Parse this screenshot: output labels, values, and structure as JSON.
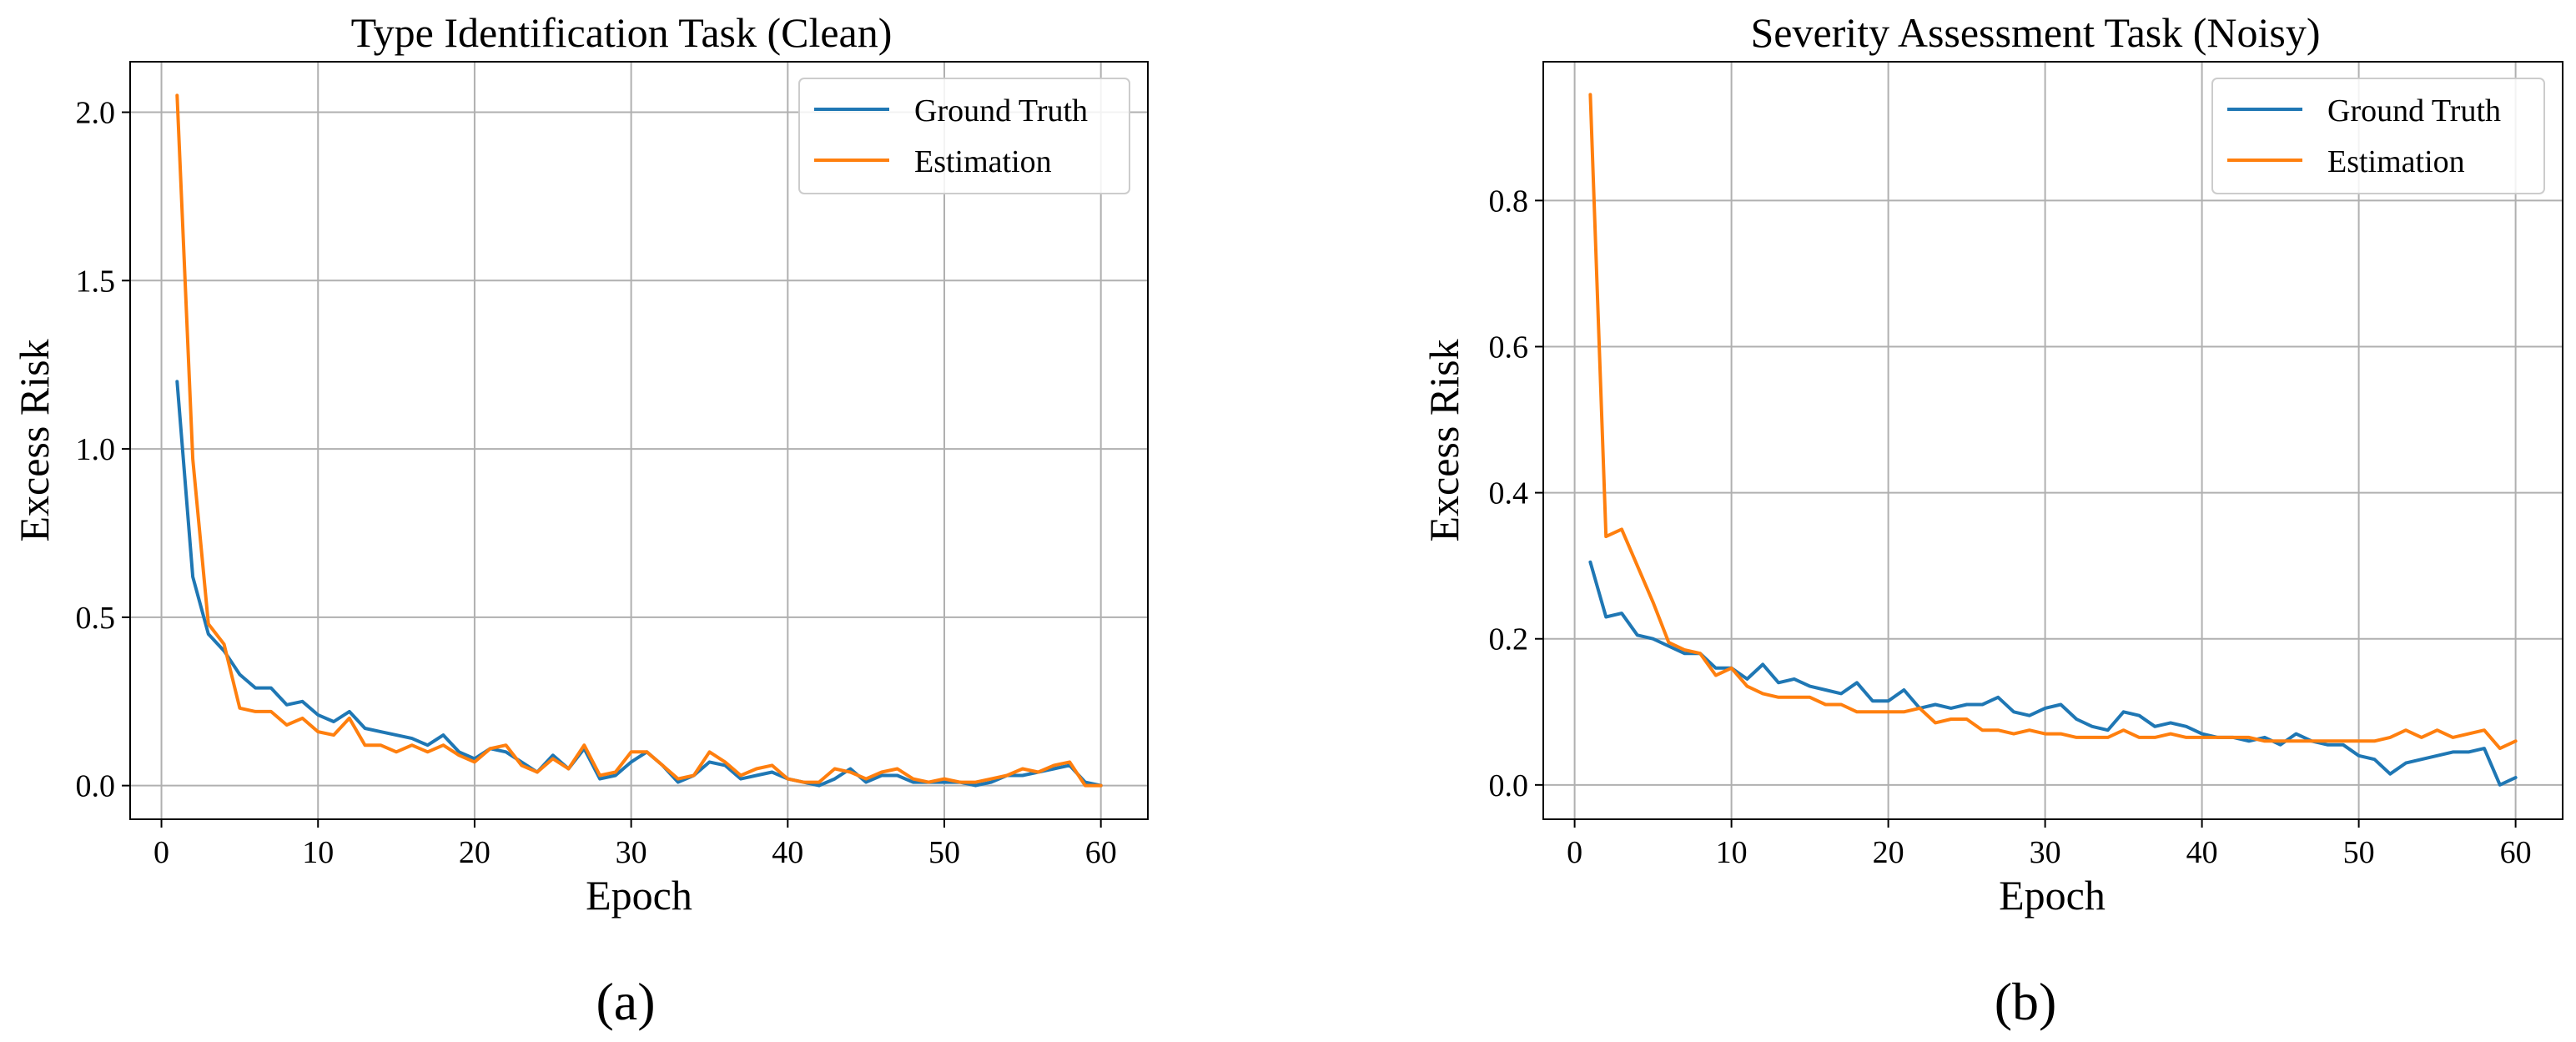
{
  "chart_data": [
    {
      "type": "line",
      "title": "Type Identification Task (Clean)",
      "xlabel": "Epoch",
      "ylabel": "Excess Risk",
      "caption": "(a)",
      "xlim": [
        -2,
        63
      ],
      "ylim": [
        -0.1,
        2.15
      ],
      "xticks": [
        0,
        10,
        20,
        30,
        40,
        50,
        60
      ],
      "xtick_labels": [
        "0",
        "10",
        "20",
        "30",
        "40",
        "50",
        "60"
      ],
      "yticks": [
        0.0,
        0.5,
        1.0,
        1.5,
        2.0
      ],
      "ytick_labels": [
        "0.0",
        "0.5",
        "1.0",
        "1.5",
        "2.0"
      ],
      "grid": true,
      "legend_position": "top-right",
      "x": [
        1,
        2,
        3,
        4,
        5,
        6,
        7,
        8,
        9,
        10,
        11,
        12,
        13,
        14,
        15,
        16,
        17,
        18,
        19,
        20,
        21,
        22,
        23,
        24,
        25,
        26,
        27,
        28,
        29,
        30,
        31,
        32,
        33,
        34,
        35,
        36,
        37,
        38,
        39,
        40,
        41,
        42,
        43,
        44,
        45,
        46,
        47,
        48,
        49,
        50,
        51,
        52,
        53,
        54,
        55,
        56,
        57,
        58,
        59,
        60
      ],
      "series": [
        {
          "name": "Ground Truth",
          "color": "#1f77b4",
          "values": [
            1.2,
            0.62,
            0.45,
            0.4,
            0.33,
            0.29,
            0.29,
            0.24,
            0.25,
            0.21,
            0.19,
            0.22,
            0.17,
            0.16,
            0.15,
            0.14,
            0.12,
            0.15,
            0.1,
            0.08,
            0.11,
            0.1,
            0.07,
            0.04,
            0.09,
            0.05,
            0.11,
            0.02,
            0.03,
            0.07,
            0.1,
            0.06,
            0.01,
            0.03,
            0.07,
            0.06,
            0.02,
            0.03,
            0.04,
            0.02,
            0.01,
            0.0,
            0.02,
            0.05,
            0.01,
            0.03,
            0.03,
            0.01,
            0.01,
            0.01,
            0.01,
            0.0,
            0.01,
            0.03,
            0.03,
            0.04,
            0.05,
            0.06,
            0.01,
            0.0
          ]
        },
        {
          "name": "Estimation",
          "color": "#ff7f0e",
          "values": [
            2.05,
            0.97,
            0.48,
            0.42,
            0.23,
            0.22,
            0.22,
            0.18,
            0.2,
            0.16,
            0.15,
            0.2,
            0.12,
            0.12,
            0.1,
            0.12,
            0.1,
            0.12,
            0.09,
            0.07,
            0.11,
            0.12,
            0.06,
            0.04,
            0.08,
            0.05,
            0.12,
            0.03,
            0.04,
            0.1,
            0.1,
            0.06,
            0.02,
            0.03,
            0.1,
            0.07,
            0.03,
            0.05,
            0.06,
            0.02,
            0.01,
            0.01,
            0.05,
            0.04,
            0.02,
            0.04,
            0.05,
            0.02,
            0.01,
            0.02,
            0.01,
            0.01,
            0.02,
            0.03,
            0.05,
            0.04,
            0.06,
            0.07,
            0.0,
            0.0
          ]
        }
      ]
    },
    {
      "type": "line",
      "title": "Severity Assessment Task (Noisy)",
      "xlabel": "Epoch",
      "ylabel": "Excess Risk",
      "caption": "(b)",
      "xlim": [
        -2,
        63
      ],
      "ylim": [
        -0.047,
        0.99
      ],
      "xticks": [
        0,
        10,
        20,
        30,
        40,
        50,
        60
      ],
      "xtick_labels": [
        "0",
        "10",
        "20",
        "30",
        "40",
        "50",
        "60"
      ],
      "yticks": [
        0.0,
        0.2,
        0.4,
        0.6,
        0.8
      ],
      "ytick_labels": [
        "0.0",
        "0.2",
        "0.4",
        "0.6",
        "0.8"
      ],
      "grid": true,
      "legend_position": "top-right",
      "x": [
        1,
        2,
        3,
        4,
        5,
        6,
        7,
        8,
        9,
        10,
        11,
        12,
        13,
        14,
        15,
        16,
        17,
        18,
        19,
        20,
        21,
        22,
        23,
        24,
        25,
        26,
        27,
        28,
        29,
        30,
        31,
        32,
        33,
        34,
        35,
        36,
        37,
        38,
        39,
        40,
        41,
        42,
        43,
        44,
        45,
        46,
        47,
        48,
        49,
        50,
        51,
        52,
        53,
        54,
        55,
        56,
        57,
        58,
        59,
        60
      ],
      "series": [
        {
          "name": "Ground Truth",
          "color": "#1f77b4",
          "values": [
            0.305,
            0.23,
            0.235,
            0.205,
            0.2,
            0.19,
            0.18,
            0.18,
            0.16,
            0.16,
            0.145,
            0.165,
            0.14,
            0.145,
            0.135,
            0.13,
            0.125,
            0.14,
            0.115,
            0.115,
            0.13,
            0.105,
            0.11,
            0.105,
            0.11,
            0.11,
            0.12,
            0.1,
            0.095,
            0.105,
            0.11,
            0.09,
            0.08,
            0.075,
            0.1,
            0.095,
            0.08,
            0.085,
            0.08,
            0.07,
            0.065,
            0.065,
            0.06,
            0.065,
            0.055,
            0.07,
            0.06,
            0.055,
            0.055,
            0.04,
            0.035,
            0.015,
            0.03,
            0.035,
            0.04,
            0.045,
            0.045,
            0.05,
            0.0,
            0.01
          ]
        },
        {
          "name": "Estimation",
          "color": "#ff7f0e",
          "values": [
            0.945,
            0.34,
            0.35,
            0.3,
            0.25,
            0.195,
            0.185,
            0.18,
            0.15,
            0.16,
            0.135,
            0.125,
            0.12,
            0.12,
            0.12,
            0.11,
            0.11,
            0.1,
            0.1,
            0.1,
            0.1,
            0.105,
            0.085,
            0.09,
            0.09,
            0.075,
            0.075,
            0.07,
            0.075,
            0.07,
            0.07,
            0.065,
            0.065,
            0.065,
            0.075,
            0.065,
            0.065,
            0.07,
            0.065,
            0.065,
            0.065,
            0.065,
            0.065,
            0.06,
            0.06,
            0.06,
            0.06,
            0.06,
            0.06,
            0.06,
            0.06,
            0.065,
            0.075,
            0.065,
            0.075,
            0.065,
            0.07,
            0.075,
            0.05,
            0.06
          ]
        }
      ]
    }
  ]
}
